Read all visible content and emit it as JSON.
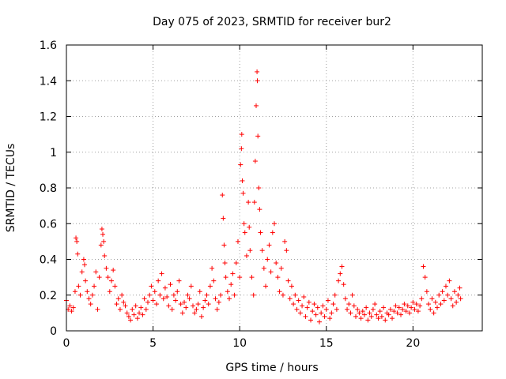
{
  "chart_data": {
    "type": "scatter",
    "title": "Day 075 of 2023, SRMTID for receiver bur2",
    "xlabel": "GPS time / hours",
    "ylabel": "SRMTID / TECUs",
    "xlim": [
      0,
      24
    ],
    "ylim": [
      0,
      1.6
    ],
    "xticks": [
      0,
      5,
      10,
      15,
      20
    ],
    "xtick_labels": [
      "0",
      "5",
      "10",
      "15",
      "20"
    ],
    "yticks": [
      0,
      0.2,
      0.4,
      0.6,
      0.8,
      1.0,
      1.2,
      1.4,
      1.6
    ],
    "ytick_labels": [
      "0",
      "0.2",
      "0.4",
      "0.6",
      "0.8",
      "1",
      "1.2",
      "1.4",
      "1.6"
    ],
    "grid": true,
    "marker": "plus",
    "color": "#ff0000",
    "series": [
      {
        "name": "SRMTID",
        "points": [
          [
            0.0,
            0.17
          ],
          [
            0.1,
            0.12
          ],
          [
            0.2,
            0.14
          ],
          [
            0.3,
            0.11
          ],
          [
            0.4,
            0.13
          ],
          [
            0.5,
            0.22
          ],
          [
            0.55,
            0.52
          ],
          [
            0.6,
            0.5
          ],
          [
            0.65,
            0.43
          ],
          [
            0.7,
            0.25
          ],
          [
            0.8,
            0.2
          ],
          [
            0.9,
            0.33
          ],
          [
            1.0,
            0.4
          ],
          [
            1.05,
            0.37
          ],
          [
            1.1,
            0.28
          ],
          [
            1.2,
            0.22
          ],
          [
            1.3,
            0.18
          ],
          [
            1.4,
            0.15
          ],
          [
            1.5,
            0.2
          ],
          [
            1.6,
            0.25
          ],
          [
            1.7,
            0.33
          ],
          [
            1.8,
            0.12
          ],
          [
            1.9,
            0.3
          ],
          [
            2.0,
            0.48
          ],
          [
            2.05,
            0.57
          ],
          [
            2.1,
            0.54
          ],
          [
            2.15,
            0.5
          ],
          [
            2.2,
            0.42
          ],
          [
            2.3,
            0.35
          ],
          [
            2.4,
            0.3
          ],
          [
            2.5,
            0.22
          ],
          [
            2.6,
            0.28
          ],
          [
            2.7,
            0.34
          ],
          [
            2.8,
            0.25
          ],
          [
            2.9,
            0.15
          ],
          [
            3.0,
            0.18
          ],
          [
            3.1,
            0.12
          ],
          [
            3.2,
            0.2
          ],
          [
            3.3,
            0.16
          ],
          [
            3.4,
            0.14
          ],
          [
            3.5,
            0.1
          ],
          [
            3.6,
            0.08
          ],
          [
            3.7,
            0.06
          ],
          [
            3.8,
            0.12
          ],
          [
            3.9,
            0.09
          ],
          [
            4.0,
            0.14
          ],
          [
            4.1,
            0.07
          ],
          [
            4.2,
            0.1
          ],
          [
            4.3,
            0.13
          ],
          [
            4.4,
            0.09
          ],
          [
            4.5,
            0.18
          ],
          [
            4.6,
            0.12
          ],
          [
            4.7,
            0.16
          ],
          [
            4.8,
            0.2
          ],
          [
            4.9,
            0.25
          ],
          [
            5.0,
            0.17
          ],
          [
            5.1,
            0.22
          ],
          [
            5.2,
            0.15
          ],
          [
            5.3,
            0.28
          ],
          [
            5.4,
            0.2
          ],
          [
            5.5,
            0.32
          ],
          [
            5.6,
            0.18
          ],
          [
            5.7,
            0.24
          ],
          [
            5.8,
            0.19
          ],
          [
            5.9,
            0.14
          ],
          [
            6.0,
            0.26
          ],
          [
            6.1,
            0.12
          ],
          [
            6.2,
            0.2
          ],
          [
            6.3,
            0.17
          ],
          [
            6.4,
            0.22
          ],
          [
            6.5,
            0.28
          ],
          [
            6.6,
            0.15
          ],
          [
            6.7,
            0.1
          ],
          [
            6.8,
            0.16
          ],
          [
            6.9,
            0.13
          ],
          [
            7.0,
            0.2
          ],
          [
            7.1,
            0.18
          ],
          [
            7.2,
            0.25
          ],
          [
            7.3,
            0.14
          ],
          [
            7.4,
            0.1
          ],
          [
            7.5,
            0.12
          ],
          [
            7.6,
            0.15
          ],
          [
            7.7,
            0.22
          ],
          [
            7.8,
            0.08
          ],
          [
            7.9,
            0.13
          ],
          [
            8.0,
            0.17
          ],
          [
            8.1,
            0.2
          ],
          [
            8.2,
            0.15
          ],
          [
            8.3,
            0.25
          ],
          [
            8.4,
            0.35
          ],
          [
            8.5,
            0.28
          ],
          [
            8.6,
            0.18
          ],
          [
            8.7,
            0.12
          ],
          [
            8.8,
            0.16
          ],
          [
            8.9,
            0.2
          ],
          [
            9.0,
            0.76
          ],
          [
            9.05,
            0.63
          ],
          [
            9.1,
            0.48
          ],
          [
            9.15,
            0.38
          ],
          [
            9.2,
            0.3
          ],
          [
            9.3,
            0.22
          ],
          [
            9.4,
            0.18
          ],
          [
            9.5,
            0.26
          ],
          [
            9.6,
            0.32
          ],
          [
            9.7,
            0.2
          ],
          [
            9.8,
            0.38
          ],
          [
            9.9,
            0.5
          ],
          [
            10.0,
            0.3
          ],
          [
            10.05,
            0.93
          ],
          [
            10.1,
            1.02
          ],
          [
            10.12,
            1.1
          ],
          [
            10.15,
            0.84
          ],
          [
            10.2,
            0.77
          ],
          [
            10.25,
            0.6
          ],
          [
            10.3,
            0.55
          ],
          [
            10.4,
            0.42
          ],
          [
            10.5,
            0.72
          ],
          [
            10.55,
            0.58
          ],
          [
            10.6,
            0.45
          ],
          [
            10.7,
            0.3
          ],
          [
            10.8,
            0.2
          ],
          [
            10.85,
            0.72
          ],
          [
            10.9,
            0.95
          ],
          [
            10.95,
            1.26
          ],
          [
            11.0,
            1.45
          ],
          [
            11.02,
            1.4
          ],
          [
            11.05,
            1.09
          ],
          [
            11.1,
            0.8
          ],
          [
            11.15,
            0.68
          ],
          [
            11.2,
            0.55
          ],
          [
            11.3,
            0.45
          ],
          [
            11.4,
            0.35
          ],
          [
            11.5,
            0.25
          ],
          [
            11.6,
            0.4
          ],
          [
            11.7,
            0.48
          ],
          [
            11.8,
            0.33
          ],
          [
            11.9,
            0.55
          ],
          [
            12.0,
            0.6
          ],
          [
            12.1,
            0.38
          ],
          [
            12.2,
            0.3
          ],
          [
            12.3,
            0.22
          ],
          [
            12.4,
            0.35
          ],
          [
            12.5,
            0.2
          ],
          [
            12.6,
            0.5
          ],
          [
            12.7,
            0.45
          ],
          [
            12.8,
            0.28
          ],
          [
            12.9,
            0.18
          ],
          [
            13.0,
            0.25
          ],
          [
            13.1,
            0.15
          ],
          [
            13.2,
            0.2
          ],
          [
            13.3,
            0.12
          ],
          [
            13.4,
            0.17
          ],
          [
            13.5,
            0.1
          ],
          [
            13.6,
            0.14
          ],
          [
            13.7,
            0.19
          ],
          [
            13.8,
            0.08
          ],
          [
            13.9,
            0.13
          ],
          [
            14.0,
            0.16
          ],
          [
            14.1,
            0.06
          ],
          [
            14.2,
            0.11
          ],
          [
            14.3,
            0.15
          ],
          [
            14.4,
            0.09
          ],
          [
            14.5,
            0.13
          ],
          [
            14.6,
            0.05
          ],
          [
            14.7,
            0.1
          ],
          [
            14.8,
            0.14
          ],
          [
            14.9,
            0.08
          ],
          [
            15.0,
            0.12
          ],
          [
            15.1,
            0.17
          ],
          [
            15.2,
            0.07
          ],
          [
            15.3,
            0.1
          ],
          [
            15.4,
            0.15
          ],
          [
            15.5,
            0.2
          ],
          [
            15.6,
            0.12
          ],
          [
            15.7,
            0.28
          ],
          [
            15.8,
            0.32
          ],
          [
            15.9,
            0.36
          ],
          [
            16.0,
            0.26
          ],
          [
            16.1,
            0.18
          ],
          [
            16.2,
            0.12
          ],
          [
            16.3,
            0.15
          ],
          [
            16.4,
            0.1
          ],
          [
            16.5,
            0.2
          ],
          [
            16.6,
            0.14
          ],
          [
            16.7,
            0.08
          ],
          [
            16.8,
            0.12
          ],
          [
            16.9,
            0.1
          ],
          [
            17.0,
            0.07
          ],
          [
            17.1,
            0.11
          ],
          [
            17.2,
            0.09
          ],
          [
            17.3,
            0.13
          ],
          [
            17.4,
            0.06
          ],
          [
            17.5,
            0.1
          ],
          [
            17.6,
            0.08
          ],
          [
            17.7,
            0.12
          ],
          [
            17.8,
            0.15
          ],
          [
            17.9,
            0.09
          ],
          [
            18.0,
            0.07
          ],
          [
            18.1,
            0.11
          ],
          [
            18.2,
            0.08
          ],
          [
            18.3,
            0.13
          ],
          [
            18.4,
            0.06
          ],
          [
            18.5,
            0.1
          ],
          [
            18.6,
            0.09
          ],
          [
            18.7,
            0.12
          ],
          [
            18.8,
            0.07
          ],
          [
            18.9,
            0.11
          ],
          [
            19.0,
            0.14
          ],
          [
            19.1,
            0.1
          ],
          [
            19.2,
            0.13
          ],
          [
            19.3,
            0.09
          ],
          [
            19.4,
            0.12
          ],
          [
            19.5,
            0.15
          ],
          [
            19.6,
            0.11
          ],
          [
            19.7,
            0.14
          ],
          [
            19.8,
            0.1
          ],
          [
            19.9,
            0.13
          ],
          [
            20.0,
            0.16
          ],
          [
            20.1,
            0.12
          ],
          [
            20.2,
            0.15
          ],
          [
            20.3,
            0.11
          ],
          [
            20.4,
            0.14
          ],
          [
            20.5,
            0.18
          ],
          [
            20.6,
            0.36
          ],
          [
            20.7,
            0.3
          ],
          [
            20.8,
            0.22
          ],
          [
            20.9,
            0.15
          ],
          [
            21.0,
            0.12
          ],
          [
            21.1,
            0.18
          ],
          [
            21.2,
            0.1
          ],
          [
            21.3,
            0.16
          ],
          [
            21.4,
            0.13
          ],
          [
            21.5,
            0.2
          ],
          [
            21.6,
            0.15
          ],
          [
            21.7,
            0.22
          ],
          [
            21.8,
            0.17
          ],
          [
            21.9,
            0.25
          ],
          [
            22.0,
            0.2
          ],
          [
            22.1,
            0.28
          ],
          [
            22.2,
            0.18
          ],
          [
            22.3,
            0.14
          ],
          [
            22.4,
            0.22
          ],
          [
            22.5,
            0.16
          ],
          [
            22.6,
            0.2
          ],
          [
            22.7,
            0.24
          ],
          [
            22.75,
            0.18
          ]
        ]
      }
    ]
  }
}
